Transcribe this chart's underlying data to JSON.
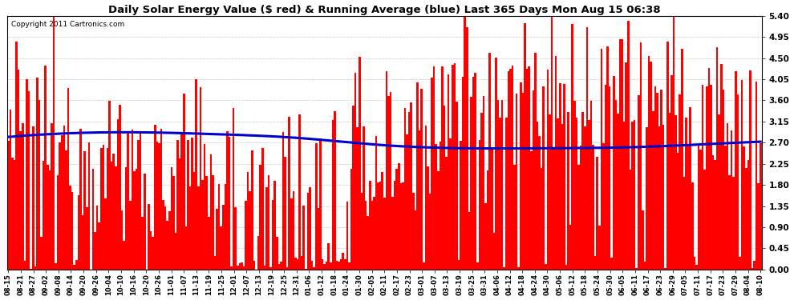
{
  "title": "Daily Solar Energy Value ($ red) & Running Average (blue) Last 365 Days Mon Aug 15 06:38",
  "copyright": "Copyright 2011 Cartronics.com",
  "bar_color": "#ff0000",
  "line_color": "#0000cc",
  "background_color": "#ffffff",
  "grid_color": "#bbbbbb",
  "ylim": [
    0.0,
    5.4
  ],
  "yticks": [
    0.0,
    0.45,
    0.9,
    1.35,
    1.8,
    2.25,
    2.7,
    3.15,
    3.6,
    4.05,
    4.5,
    4.95,
    5.4
  ],
  "xtick_labels": [
    "08-15",
    "08-21",
    "08-27",
    "09-02",
    "09-08",
    "09-14",
    "09-20",
    "09-26",
    "10-04",
    "10-10",
    "10-16",
    "10-20",
    "10-26",
    "11-01",
    "11-07",
    "11-13",
    "11-19",
    "11-25",
    "12-01",
    "12-07",
    "12-13",
    "12-19",
    "12-25",
    "12-31",
    "01-06",
    "01-12",
    "01-18",
    "01-24",
    "01-30",
    "02-05",
    "02-11",
    "02-17",
    "02-23",
    "03-01",
    "03-07",
    "03-13",
    "03-19",
    "03-25",
    "03-31",
    "04-06",
    "04-12",
    "04-18",
    "04-24",
    "04-30",
    "05-06",
    "05-12",
    "05-18",
    "05-24",
    "05-30",
    "06-05",
    "06-11",
    "06-17",
    "06-23",
    "06-29",
    "07-05",
    "07-11",
    "07-17",
    "07-23",
    "07-29",
    "08-04",
    "08-10"
  ],
  "n_days": 365,
  "avg_points_x": [
    0,
    30,
    60,
    100,
    140,
    180,
    220,
    260,
    300,
    330,
    364
  ],
  "avg_points_y": [
    2.82,
    2.9,
    2.92,
    2.88,
    2.8,
    2.65,
    2.58,
    2.58,
    2.6,
    2.65,
    2.72
  ]
}
